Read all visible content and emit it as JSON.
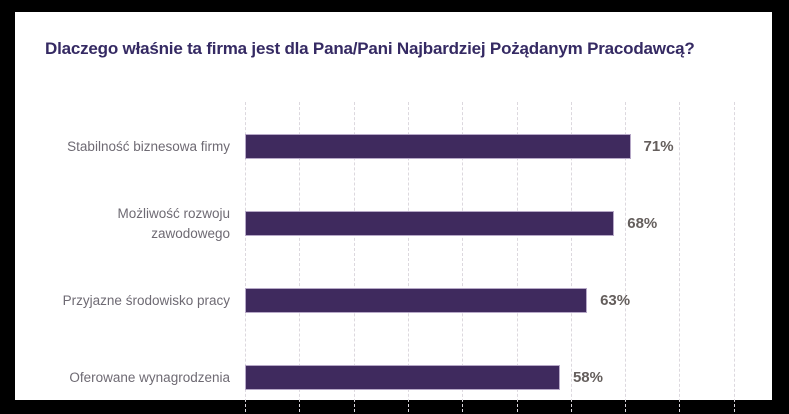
{
  "title": "Dlaczego właśnie ta firma jest dla Pana/Pani Najbardziej Pożądanym Pracodawcą?",
  "chart_data": {
    "type": "bar",
    "orientation": "horizontal",
    "title": "Dlaczego właśnie ta firma jest dla Pana/Pani Najbardziej Pożądanym Pracodawcą?",
    "categories": [
      "Stabilność biznesowa firmy",
      "Możliwość rozwoju zawodowego",
      "Przyjazne środowisko pracy",
      "Oferowane wynagrodzenia"
    ],
    "values": [
      71,
      68,
      63,
      58
    ],
    "value_labels": [
      "71%",
      "68%",
      "63%",
      "58%"
    ],
    "xlabel": "",
    "ylabel": "",
    "xlim": [
      0,
      100
    ],
    "gridline_interval": 10,
    "grid": "vertical-dashed",
    "legend": "none",
    "colors": {
      "bar_fill": "#3f2a5e",
      "bar_edge": "#b6a8c7",
      "title_text": "#352a63",
      "category_text": "#6e6a73",
      "value_text": "#645e5c",
      "gridline": "#dcd8de",
      "background": "#ffffff",
      "frame": "#000000"
    }
  }
}
